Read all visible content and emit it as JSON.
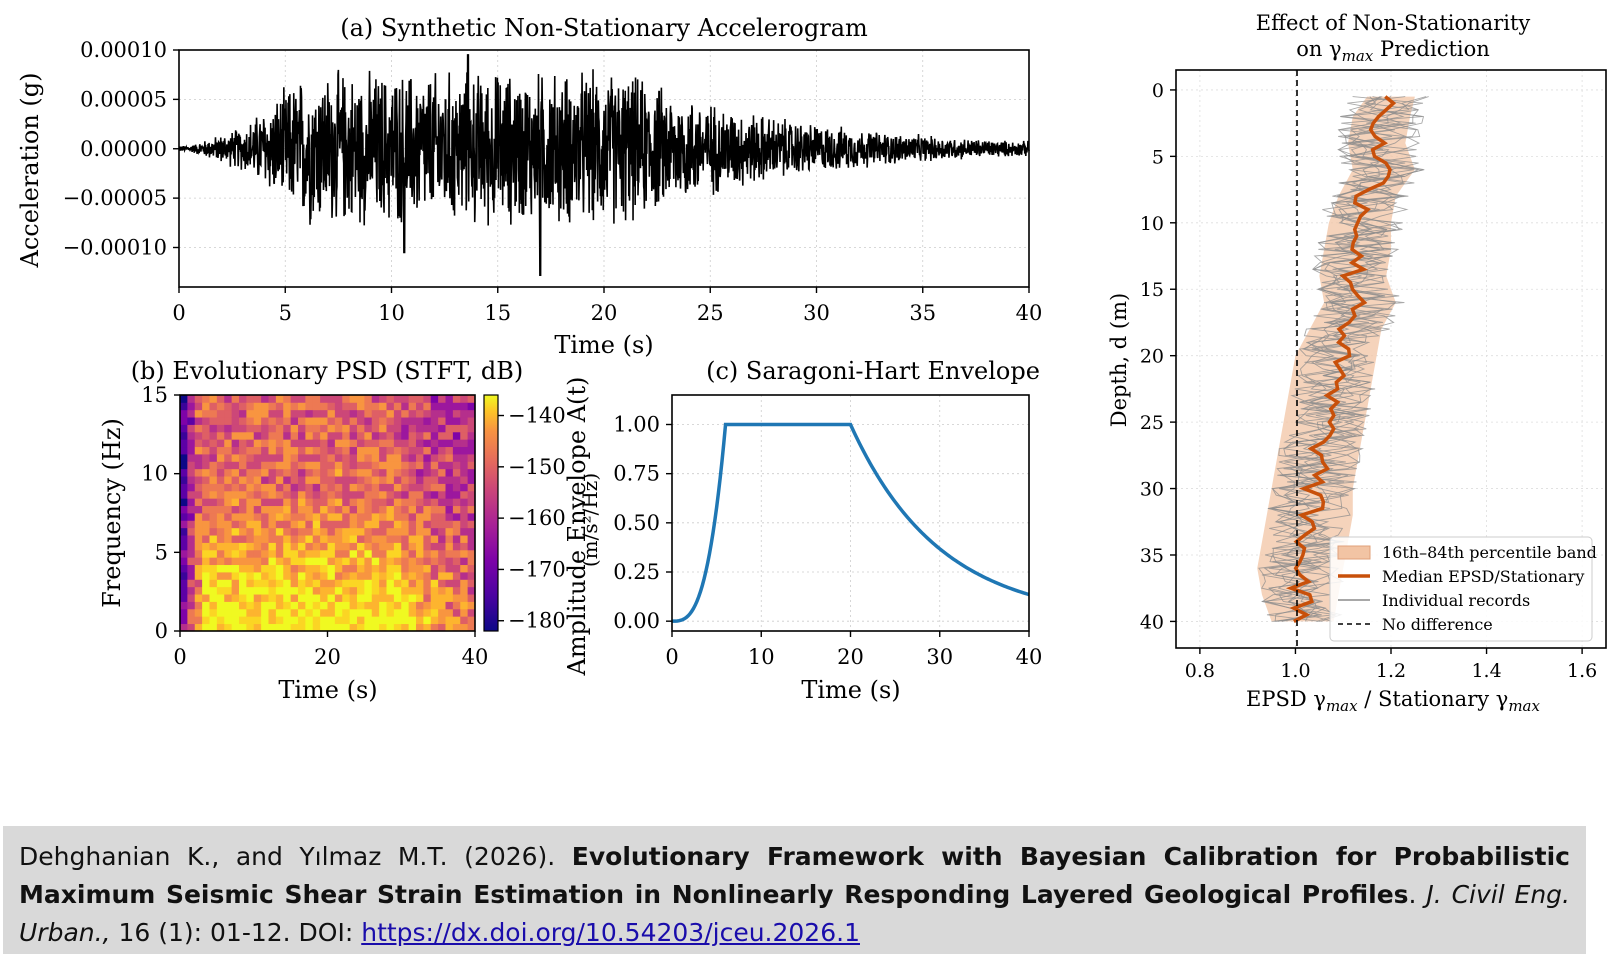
{
  "panels": {
    "a": {
      "title": "(a)  Synthetic Non-Stationary Accelerogram",
      "xlabel": "Time (s)",
      "ylabel": "Acceleration (g)",
      "xticks": [
        "0",
        "5",
        "10",
        "15",
        "20",
        "25",
        "30",
        "35",
        "40"
      ],
      "yticks": [
        "0.00010",
        "0.00005",
        "0.00000",
        "−0.00005",
        "−0.00010"
      ]
    },
    "b": {
      "title": "(b)  Evolutionary PSD (STFT, dB)",
      "xlabel": "Time (s)",
      "ylabel": "Frequency (Hz)",
      "xticks": [
        "0",
        "20",
        "40"
      ],
      "yticks": [
        "15",
        "10",
        "5",
        "0"
      ],
      "cbar_ticks": [
        "−140",
        "−150",
        "−160",
        "−170",
        "−180"
      ]
    },
    "c": {
      "title": "(c)  Saragoni-Hart Envelope",
      "xlabel": "Time (s)",
      "ylabel": "Amplitude Envelope A(t)",
      "ylabel_overlap": "(m/s²/Hz)",
      "xticks": [
        "0",
        "10",
        "20",
        "30",
        "40"
      ],
      "yticks": [
        "1.00",
        "0.75",
        "0.50",
        "0.25",
        "0.00"
      ]
    },
    "d": {
      "title_line1": "Effect of Non-Stationarity",
      "title_line2_pre": "on γ",
      "title_line2_sub": "max",
      "title_line2_post": " Prediction",
      "xlabel_pre": "EPSD γ",
      "xlabel_sub1": "max",
      "xlabel_mid": " / Stationary γ",
      "xlabel_sub2": "max",
      "ylabel": "Depth, d (m)",
      "xticks": [
        "0.8",
        "1.0",
        "1.2",
        "1.4",
        "1.6"
      ],
      "yticks": [
        "0",
        "5",
        "10",
        "15",
        "20",
        "25",
        "30",
        "35",
        "40"
      ],
      "legend": {
        "band": "16th–84th percentile band",
        "median": "Median EPSD/Stationary",
        "records": "Individual records",
        "nodiff": "No difference"
      }
    }
  },
  "citation": {
    "authors": "Dehghanian K., and Yılmaz M.T. (2026). ",
    "title": "Evolutionary Framework with Bayesian Calibration for Probabilistic Maximum Seismic Shear Strain Estimation in Nonlinearly Responding Layered Geological Profiles",
    "sep": ". ",
    "journal": "J. Civil Eng. Urban.,",
    "volume": " 16 (1): 01-12. DOI: ",
    "doi": "https://dx.doi.org/10.54203/jceu.2026.1"
  },
  "chart_data": [
    {
      "type": "line",
      "panel": "a",
      "description_units": "acceleration in g vs time in s",
      "xlim": [
        0,
        40
      ],
      "ylim": [
        -0.00014,
        0.0001
      ],
      "peak_positive": 9.5e-05,
      "peak_negative": -0.000128,
      "color": "#000000"
    },
    {
      "type": "heatmap",
      "panel": "b",
      "xlim": [
        0,
        40
      ],
      "ylim": [
        0,
        15
      ],
      "clim": [
        -182,
        -136
      ],
      "colormap": "plasma"
    },
    {
      "type": "line",
      "panel": "c",
      "xlim": [
        0,
        40
      ],
      "ylim": [
        -0.05,
        1.15
      ],
      "x": [
        0,
        1,
        2,
        3,
        4,
        5,
        6,
        20,
        22,
        24,
        26,
        28,
        30,
        32,
        34,
        36,
        38,
        40
      ],
      "y": [
        0.0,
        0.005,
        0.037,
        0.125,
        0.296,
        0.579,
        1.0,
        1.0,
        0.819,
        0.67,
        0.549,
        0.449,
        0.368,
        0.301,
        0.247,
        0.202,
        0.165,
        0.135
      ],
      "color": "#1f77b4"
    },
    {
      "type": "line",
      "panel": "d",
      "xlim": [
        0.75,
        1.65
      ],
      "ylim": [
        42,
        -1.5
      ],
      "median_depth": [
        0.5,
        2,
        4,
        6,
        8,
        10,
        12,
        14,
        16,
        18,
        20,
        22,
        24,
        26,
        28,
        30,
        32,
        34,
        36,
        38,
        40
      ],
      "median_ratio": [
        1.2,
        1.18,
        1.17,
        1.19,
        1.15,
        1.14,
        1.13,
        1.12,
        1.14,
        1.11,
        1.09,
        1.08,
        1.07,
        1.06,
        1.05,
        1.04,
        1.03,
        1.02,
        1.01,
        1.01,
        1.02
      ],
      "band_low": [
        1.15,
        1.12,
        1.11,
        1.12,
        1.09,
        1.07,
        1.06,
        1.05,
        1.06,
        1.03,
        1.0,
        0.99,
        0.98,
        0.97,
        0.96,
        0.95,
        0.94,
        0.93,
        0.92,
        0.93,
        0.95
      ],
      "band_high": [
        1.25,
        1.24,
        1.23,
        1.25,
        1.21,
        1.2,
        1.2,
        1.19,
        1.21,
        1.18,
        1.17,
        1.16,
        1.15,
        1.14,
        1.13,
        1.12,
        1.12,
        1.11,
        1.1,
        1.09,
        1.08
      ],
      "reference_x": 1.0,
      "colors": {
        "median": "#c8500a",
        "band": "#f2c4a4",
        "records": "#8c8c8c",
        "nodiff": "#000000"
      }
    }
  ]
}
